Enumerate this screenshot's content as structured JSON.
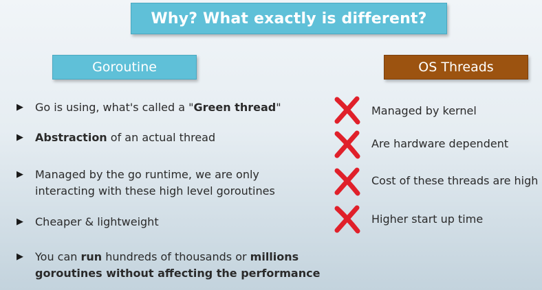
{
  "title": "Why? What exactly is different?",
  "headers": {
    "goroutine": "Goroutine",
    "os_threads": "OS Threads"
  },
  "goroutine_points": [
    {
      "parts": [
        "Go is using, what's called a \"",
        "Green thread",
        "\""
      ]
    },
    {
      "parts": [
        "",
        "Abstraction",
        " of an actual thread"
      ]
    },
    {
      "line1": "Managed by the go runtime, we are only",
      "line2": "interacting with these high level goroutines"
    },
    {
      "text": "Cheaper & lightweight"
    },
    {
      "line1_a": "You can ",
      "line1_b": "run",
      "line1_c": " hundreds of thousands or ",
      "line1_d": "millions",
      "line2": "goroutines without affecting the performance"
    }
  ],
  "os_points": [
    "Managed by kernel",
    "Are hardware dependent",
    "Cost of these threads are high",
    "Higher start up time"
  ],
  "colors": {
    "accent_blue": "#5fc0d8",
    "accent_brown": "#9c5310",
    "cross_red": "#e0202a"
  },
  "icons": {
    "bullet": "triangle-right-icon",
    "cross": "red-x-icon"
  }
}
